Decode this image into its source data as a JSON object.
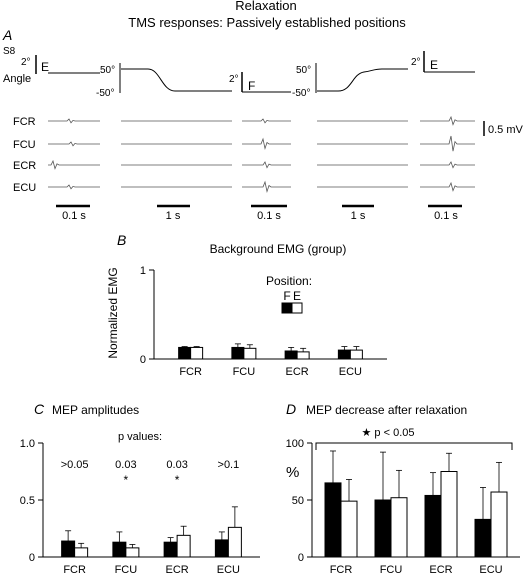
{
  "figure": {
    "title": "Relaxation",
    "subtitle": "TMS responses:  Passively established positions"
  },
  "panel_a": {
    "letter": "A",
    "subject": "S8",
    "angle_label": "Angle",
    "angle_scale": "2°",
    "angle_top": "50°",
    "angle_bottom": "-50°",
    "position_markers": [
      "E",
      "F",
      "E"
    ],
    "muscles": [
      "FCR",
      "FCU",
      "ECR",
      "ECU"
    ],
    "emg_scale": "0.5 mV",
    "time_scales": [
      "0.1 s",
      "1 s",
      "0.1 s",
      "1 s",
      "0.1 s"
    ]
  },
  "chart_data": [
    {
      "panel": "B",
      "type": "bar",
      "title": "Background EMG (group)",
      "ylabel": "Normalized EMG",
      "ylim": [
        0,
        1
      ],
      "yticks": [
        "0",
        "1"
      ],
      "categories": [
        "FCR",
        "FCU",
        "ECR",
        "ECU"
      ],
      "legend_title": "Position:",
      "series": [
        {
          "name": "F",
          "color": "#000000",
          "values": [
            0.13,
            0.13,
            0.09,
            0.1
          ],
          "errors": [
            0.01,
            0.04,
            0.04,
            0.04
          ]
        },
        {
          "name": "E",
          "color": "#ffffff",
          "values": [
            0.13,
            0.12,
            0.08,
            0.1
          ],
          "errors": [
            0.01,
            0.04,
            0.04,
            0.04
          ]
        }
      ]
    },
    {
      "panel": "C",
      "type": "bar",
      "title": "MEP amplitudes",
      "ylim": [
        0,
        1.0
      ],
      "yticks": [
        "0",
        "0.5",
        "1.0"
      ],
      "categories": [
        "FCR",
        "FCU",
        "ECR",
        "ECU"
      ],
      "annotation_title": "p values:",
      "p_values": [
        ">0.05",
        "0.03",
        "0.03",
        ">0.1"
      ],
      "significance": [
        "",
        "*",
        "*",
        ""
      ],
      "series": [
        {
          "name": "F",
          "color": "#000000",
          "values": [
            0.14,
            0.13,
            0.13,
            0.15
          ],
          "errors": [
            0.09,
            0.09,
            0.04,
            0.07
          ]
        },
        {
          "name": "E",
          "color": "#ffffff",
          "values": [
            0.08,
            0.08,
            0.19,
            0.26
          ],
          "errors": [
            0.04,
            0.03,
            0.08,
            0.18
          ]
        }
      ]
    },
    {
      "panel": "D",
      "type": "bar",
      "title": "MEP decrease after relaxation",
      "ylabel": "%",
      "ylim": [
        0,
        100
      ],
      "yticks": [
        "0",
        "50",
        "100"
      ],
      "categories": [
        "FCR",
        "FCU",
        "ECR",
        "ECU"
      ],
      "annotation": "★ p < 0.05",
      "series": [
        {
          "name": "F",
          "color": "#000000",
          "values": [
            65,
            50,
            54,
            33
          ],
          "errors": [
            28,
            42,
            20,
            28
          ]
        },
        {
          "name": "E",
          "color": "#ffffff",
          "values": [
            49,
            52,
            75,
            57
          ],
          "errors": [
            19,
            24,
            16,
            26
          ]
        }
      ]
    }
  ]
}
